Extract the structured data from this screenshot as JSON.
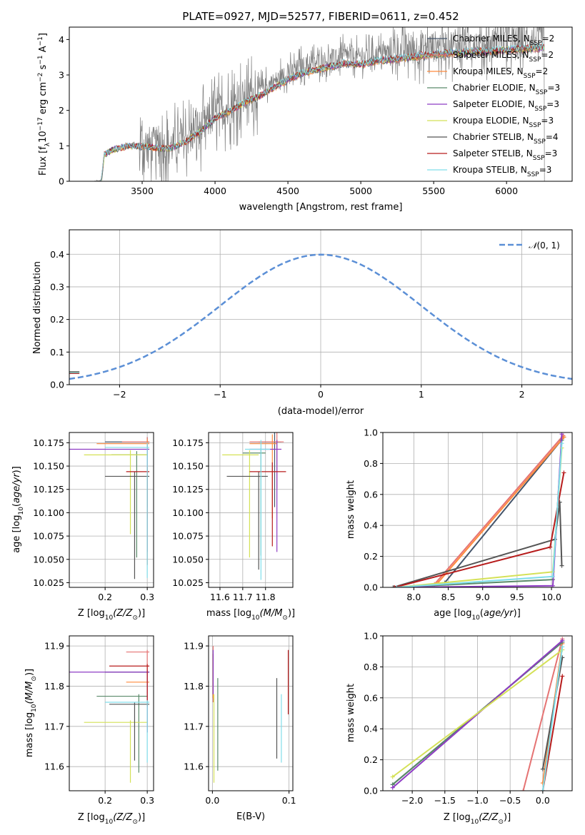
{
  "title": "PLATE=0927, MJD=52577, FIBERID=0611, z=0.452",
  "legend_names": [
    [
      "Chabrier MILES, N",
      "SSP",
      "=2"
    ],
    [
      "Salpeter MILES, N",
      "SSP",
      "=2"
    ],
    [
      "Kroupa MILES, N",
      "SSP",
      "=2"
    ],
    [
      "Chabrier ELODIE, N",
      "SSP",
      "=3"
    ],
    [
      "Salpeter ELODIE, N",
      "SSP",
      "=3"
    ],
    [
      "Kroupa ELODIE, N",
      "SSP",
      "=3"
    ],
    [
      "Chabrier STELIB, N",
      "SSP",
      "=4"
    ],
    [
      "Salpeter STELIB, N",
      "SSP",
      "=3"
    ],
    [
      "Kroupa STELIB, N",
      "SSP",
      "=3"
    ]
  ],
  "model_colors": [
    "#44546a",
    "#e57373",
    "#ff8a3d",
    "#5a8a6a",
    "#8e3cc4",
    "#d4e157",
    "#555555",
    "#b71c1c",
    "#80deea"
  ],
  "chart_data": [
    {
      "id": "spectrum",
      "type": "line",
      "title": "PLATE=0927, MJD=52577, FIBERID=0611, z=0.452",
      "xlabel": "wavelength [Angstrom, rest frame]",
      "ylabel_parts": [
        "Flux [f",
        "λ",
        "10",
        "−17",
        " erg cm",
        "−2",
        " s",
        "−1",
        " A",
        "−1",
        "]"
      ],
      "xlim": [
        3000,
        6450
      ],
      "ylim": [
        0,
        4.35
      ],
      "xticks": [
        3500,
        4000,
        4500,
        5000,
        5500,
        6000
      ],
      "yticks": [
        0,
        1,
        2,
        3,
        4
      ],
      "grid": false,
      "legend": "upper right",
      "data_color": "#808080",
      "continuum": {
        "x": [
          3175,
          3220,
          3240,
          3300,
          3400,
          3500,
          3650,
          3700,
          3800,
          3900,
          4000,
          4100,
          4200,
          4300,
          4400,
          4500,
          4600,
          4700,
          4800,
          4900,
          5000,
          5100,
          5200,
          5300,
          5400,
          5500,
          5600,
          5700,
          5800,
          5900,
          6000,
          6100,
          6200,
          6260
        ],
        "y": [
          0,
          0,
          0.8,
          0.95,
          1.05,
          1.05,
          0.98,
          1.0,
          1.2,
          1.5,
          1.9,
          2.1,
          2.35,
          2.55,
          2.8,
          3.05,
          3.25,
          3.35,
          3.45,
          3.55,
          3.5,
          3.6,
          3.65,
          3.7,
          3.75,
          3.8,
          3.85,
          3.85,
          3.9,
          3.9,
          3.95,
          3.95,
          4.0,
          4.0
        ]
      }
    },
    {
      "id": "residuals",
      "type": "step-histogram",
      "xlabel": "(data-model)/error",
      "ylabel": "Normed distribution",
      "xlim": [
        -2.5,
        2.5
      ],
      "ylim": [
        0,
        0.475
      ],
      "xticks": [
        -2,
        -1,
        0,
        1,
        2
      ],
      "yticks": [
        0.0,
        0.1,
        0.2,
        0.3,
        0.4
      ],
      "grid": true,
      "legend": "upper right",
      "reference": {
        "name_parts": [
          "𝒩",
          "(0, 1)"
        ],
        "mean": 0,
        "sigma": 1,
        "color": "#5b8fd6"
      },
      "bin_width": 0.1
    },
    {
      "id": "age-vs-Z",
      "type": "crosshair",
      "xlabel_parts": [
        "Z [log",
        "10",
        "(Z/Z",
        "⊙",
        ")]"
      ],
      "ylabel_parts": [
        "age  [log",
        "10",
        "(",
        "age/yr",
        ")]"
      ],
      "xlim": [
        0.115,
        0.315
      ],
      "ylim": [
        10.02,
        10.186
      ],
      "xticks": [
        0.2,
        0.3
      ],
      "yticks": [
        10.025,
        10.05,
        10.075,
        10.1,
        10.125,
        10.15,
        10.175
      ],
      "grid": true,
      "points": [
        {
          "x": 0.3,
          "y": 10.176,
          "xerr": [
            0.1,
            0.005
          ],
          "yerr": [
            0.07,
            0.005
          ]
        },
        {
          "x": 0.3,
          "y": 10.176,
          "xerr": [
            0.06,
            0.005
          ],
          "yerr": [
            0.05,
            0.005
          ]
        },
        {
          "x": 0.3,
          "y": 10.174,
          "xerr": [
            0.12,
            0.005
          ],
          "yerr": [
            0.08,
            0.005
          ]
        },
        {
          "x": 0.275,
          "y": 10.162,
          "xerr": [
            0.06,
            0.025
          ],
          "yerr": [
            0.11,
            0.004
          ]
        },
        {
          "x": 0.3,
          "y": 10.168,
          "xerr": [
            0.19,
            0.005
          ],
          "yerr": [
            0.11,
            0.005
          ]
        },
        {
          "x": 0.26,
          "y": 10.162,
          "xerr": [
            0.11,
            0.04
          ],
          "yerr": [
            0.085,
            0.005
          ]
        },
        {
          "x": 0.27,
          "y": 10.139,
          "xerr": [
            0.07,
            0.035
          ],
          "yerr": [
            0.11,
            0.005
          ]
        },
        {
          "x": 0.3,
          "y": 10.144,
          "xerr": [
            0.05,
            0.005
          ],
          "yerr": [
            0.1,
            0.005
          ]
        },
        {
          "x": 0.3,
          "y": 10.17,
          "xerr": [
            0.1,
            0.005
          ],
          "yerr": [
            0.14,
            0.005
          ]
        }
      ]
    },
    {
      "id": "age-vs-mass",
      "type": "crosshair",
      "xlabel_parts": [
        "mass [log",
        "10",
        "(M/M",
        "⊙",
        ")]"
      ],
      "xlim": [
        11.55,
        11.92
      ],
      "ylim": [
        10.02,
        10.186
      ],
      "xticks": [
        11.6,
        11.7,
        11.8
      ],
      "yticks": [
        10.025,
        10.05,
        10.075,
        10.1,
        10.125,
        10.15,
        10.175
      ],
      "grid": true,
      "points": [
        {
          "x": 11.84,
          "y": 10.176,
          "xerr": [
            0.07,
            0.03
          ],
          "yerr": [
            0.07,
            0.01
          ]
        },
        {
          "x": 11.85,
          "y": 10.176,
          "xerr": [
            0.12,
            0.03
          ],
          "yerr": [
            0.05,
            0.01
          ]
        },
        {
          "x": 11.83,
          "y": 10.174,
          "xerr": [
            0.1,
            0.02
          ],
          "yerr": [
            0.08,
            0.01
          ]
        },
        {
          "x": 11.78,
          "y": 10.164,
          "xerr": [
            0.08,
            0.02
          ],
          "yerr": [
            0.11,
            0.005
          ]
        },
        {
          "x": 11.85,
          "y": 10.168,
          "xerr": [
            0.12,
            0.02
          ],
          "yerr": [
            0.11,
            0.01
          ]
        },
        {
          "x": 11.73,
          "y": 10.162,
          "xerr": [
            0.12,
            0.04
          ],
          "yerr": [
            0.11,
            0.005
          ]
        },
        {
          "x": 11.77,
          "y": 10.139,
          "xerr": [
            0.14,
            0.04
          ],
          "yerr": [
            0.1,
            0.005
          ]
        },
        {
          "x": 11.83,
          "y": 10.144,
          "xerr": [
            0.1,
            0.06
          ],
          "yerr": [
            0.08,
            0.01
          ]
        },
        {
          "x": 11.78,
          "y": 10.168,
          "xerr": [
            0.07,
            0.04
          ],
          "yerr": [
            0.14,
            0.01
          ]
        }
      ]
    },
    {
      "id": "weight-vs-age",
      "type": "line",
      "xlabel_parts": [
        "age  [log",
        "10",
        "(",
        "age/yr",
        ")]"
      ],
      "ylabel": "mass weight",
      "xlim": [
        7.55,
        10.3
      ],
      "ylim": [
        0,
        1
      ],
      "xticks": [
        8.0,
        8.5,
        9.0,
        9.5,
        10.0
      ],
      "yticks": [
        0.0,
        0.2,
        0.4,
        0.6,
        0.8,
        1.0
      ],
      "grid": true,
      "series": [
        {
          "x": [
            8.45,
            10.18
          ],
          "y": [
            0.03,
            0.97
          ]
        },
        {
          "x": [
            8.3,
            10.17
          ],
          "y": [
            0.02,
            0.98
          ]
        },
        {
          "x": [
            8.35,
            10.18
          ],
          "y": [
            0.03,
            0.97
          ]
        },
        {
          "x": [
            7.75,
            10.02,
            10.15
          ],
          "y": [
            0.0,
            0.05,
            0.95
          ]
        },
        {
          "x": [
            7.75,
            10.02,
            10.15
          ],
          "y": [
            0.0,
            0.01,
            0.99
          ]
        },
        {
          "x": [
            7.75,
            10.02,
            10.15
          ],
          "y": [
            0.0,
            0.1,
            0.9
          ]
        },
        {
          "x": [
            7.7,
            10.05,
            10.12,
            10.15
          ],
          "y": [
            0.0,
            0.31,
            0.55,
            0.14
          ]
        },
        {
          "x": [
            7.72,
            9.98,
            10.18
          ],
          "y": [
            0.0,
            0.26,
            0.74
          ]
        },
        {
          "x": [
            7.75,
            10.02,
            10.15
          ],
          "y": [
            0.0,
            0.07,
            0.93
          ]
        }
      ]
    },
    {
      "id": "mass-vs-Z",
      "type": "crosshair",
      "xlabel_parts": [
        "Z [log",
        "10",
        "(Z/Z",
        "⊙",
        ")]"
      ],
      "ylabel_parts": [
        "mass [log",
        "10",
        "(M/M",
        "⊙",
        ")]"
      ],
      "xlim": [
        0.115,
        0.315
      ],
      "ylim": [
        11.54,
        11.925
      ],
      "xticks": [
        0.2,
        0.3
      ],
      "yticks": [
        11.6,
        11.7,
        11.8,
        11.9
      ],
      "grid": true,
      "points": [
        {
          "x": 0.3,
          "y": 11.835,
          "xerr": [
            0.1,
            0.005
          ],
          "yerr": [
            0.15,
            0.005
          ]
        },
        {
          "x": 0.3,
          "y": 11.885,
          "xerr": [
            0.05,
            0.005
          ],
          "yerr": [
            0.1,
            0.005
          ]
        },
        {
          "x": 0.3,
          "y": 11.81,
          "xerr": [
            0.05,
            0.005
          ],
          "yerr": [
            0.1,
            0.005
          ]
        },
        {
          "x": 0.28,
          "y": 11.775,
          "xerr": [
            0.1,
            0.02
          ],
          "yerr": [
            0.19,
            0.005
          ]
        },
        {
          "x": 0.3,
          "y": 11.835,
          "xerr": [
            0.19,
            0.005
          ],
          "yerr": [
            0.15,
            0.005
          ]
        },
        {
          "x": 0.26,
          "y": 11.71,
          "xerr": [
            0.11,
            0.04
          ],
          "yerr": [
            0.15,
            0.005
          ]
        },
        {
          "x": 0.27,
          "y": 11.755,
          "xerr": [
            0.06,
            0.035
          ],
          "yerr": [
            0.14,
            0.005
          ]
        },
        {
          "x": 0.3,
          "y": 11.85,
          "xerr": [
            0.09,
            0.005
          ],
          "yerr": [
            0.1,
            0.005
          ]
        },
        {
          "x": 0.3,
          "y": 11.76,
          "xerr": [
            0.1,
            0.005
          ],
          "yerr": [
            0.15,
            0.005
          ]
        }
      ]
    },
    {
      "id": "mass-vs-ebv",
      "type": "errorbar",
      "xlabel": "E(B-V)",
      "xlim": [
        -0.005,
        0.105
      ],
      "ylim": [
        11.54,
        11.925
      ],
      "xticks": [
        0.0,
        0.1
      ],
      "yticks": [
        11.6,
        11.7,
        11.8,
        11.9
      ],
      "grid": true,
      "points": [
        {
          "x": 0.001,
          "y": 11.83,
          "yerr": [
            0.06,
            0.05
          ]
        },
        {
          "x": 0.001,
          "y": 11.85,
          "yerr": [
            0.09,
            0.05
          ]
        },
        {
          "x": 0.001,
          "y": 11.84,
          "yerr": [
            0.07,
            0.04
          ]
        },
        {
          "x": 0.007,
          "y": 11.72,
          "yerr": [
            0.13,
            0.1
          ]
        },
        {
          "x": 0.001,
          "y": 11.85,
          "yerr": [
            0.07,
            0.04
          ]
        },
        {
          "x": 0.002,
          "y": 11.68,
          "yerr": [
            0.12,
            0.1
          ]
        },
        {
          "x": 0.084,
          "y": 11.72,
          "yerr": [
            0.1,
            0.1
          ]
        },
        {
          "x": 0.099,
          "y": 11.81,
          "yerr": [
            0.08,
            0.08
          ]
        },
        {
          "x": 0.09,
          "y": 11.7,
          "yerr": [
            0.09,
            0.08
          ]
        }
      ]
    },
    {
      "id": "weight-vs-Z",
      "type": "line",
      "xlabel_parts": [
        "Z [log",
        "10",
        "(Z/Z",
        "⊙",
        ")]"
      ],
      "ylabel": "mass weight",
      "xlim": [
        -2.45,
        0.45
      ],
      "ylim": [
        0,
        1
      ],
      "xticks": [
        -2.0,
        -1.5,
        -1.0,
        -0.5,
        0.0
      ],
      "yticks": [
        0.0,
        0.2,
        0.4,
        0.6,
        0.8,
        1.0
      ],
      "grid": true,
      "series": [
        {
          "x": [
            -2.3,
            0.3
          ],
          "y": [
            0.04,
            0.96
          ]
        },
        {
          "x": [
            -0.3,
            0.3
          ],
          "y": [
            0.0,
            0.98
          ]
        },
        {
          "x": [
            0.0,
            0.3
          ],
          "y": [
            0.05,
            0.95
          ]
        },
        {
          "x": [
            -2.3,
            0.3
          ],
          "y": [
            0.04,
            0.96
          ]
        },
        {
          "x": [
            -2.3,
            0.3
          ],
          "y": [
            0.02,
            0.97
          ]
        },
        {
          "x": [
            -2.3,
            0.3
          ],
          "y": [
            0.09,
            0.91
          ]
        },
        {
          "x": [
            0.0,
            0.3
          ],
          "y": [
            0.14,
            0.86
          ]
        },
        {
          "x": [
            0.0,
            0.3
          ],
          "y": [
            0.0,
            0.74
          ]
        },
        {
          "x": [
            0.0,
            0.3
          ],
          "y": [
            0.0,
            0.93
          ]
        }
      ]
    }
  ]
}
